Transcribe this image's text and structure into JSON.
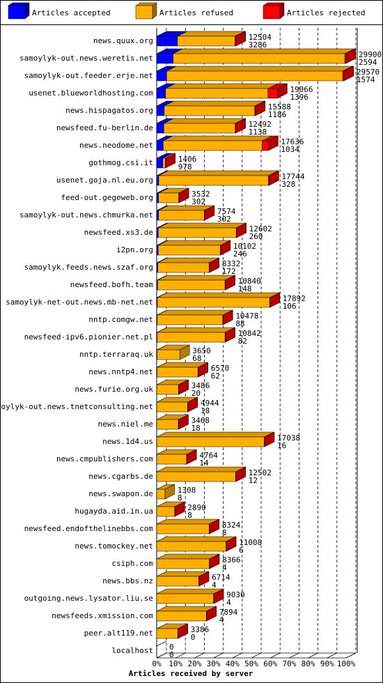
{
  "chart_data": {
    "type": "bar",
    "stacked": true,
    "orientation": "horizontal",
    "x_label": "Articles received by server",
    "categories": [
      "news.quux.org",
      "samoylyk-out.news.weretis.net",
      "samoylyk-out.feeder.erje.net",
      "usenet.blueworldhosting.com",
      "news.hispagatos.org",
      "newsfeed.fu-berlin.de",
      "news.neodome.net",
      "gothmog.csi.it",
      "usenet.goja.nl.eu.org",
      "feed-out.gegeweb.org",
      "samoylyk-out.news.chmurka.net",
      "newsfeed.xs3.de",
      "i2pn.org",
      "samoylyk.feeds.news.szaf.org",
      "newsfeed.bofh.team",
      "samoylyk-net-out.news.mb-net.net",
      "nntp.comgw.net",
      "newsfeed-ipv6.pionier.net.pl",
      "nntp.terraraq.uk",
      "news.nntp4.net",
      "news.furie.org.uk",
      "samoylyk-out.news.tnetconsulting.net",
      "news.niel.me",
      "news.1d4.us",
      "news.cmpublishers.com",
      "news.cgarbs.de",
      "news.swapon.de",
      "hugayda.aid.in.ua",
      "newsfeed.endofthelinebbs.com",
      "news.tomockey.net",
      "csiph.com",
      "news.bbs.nz",
      "outgoing.news.lysator.liu.se",
      "newsfeeds.xmission.com",
      "peer.alt119.net",
      "localhost"
    ],
    "totals": [
      12504,
      29900,
      29570,
      19066,
      15588,
      12492,
      17636,
      1406,
      17744,
      3532,
      7574,
      12602,
      10102,
      8332,
      10840,
      17892,
      10478,
      10842,
      3650,
      6570,
      3486,
      4944,
      3468,
      17038,
      4764,
      12502,
      1308,
      2890,
      8324,
      11008,
      8366,
      6714,
      9030,
      7894,
      3386,
      0
    ],
    "series": [
      {
        "name": "Articles accepted",
        "color": "#0000ff",
        "values": [
          3286,
          2594,
          1574,
          1396,
          1186,
          1138,
          1034,
          978,
          328,
          302,
          302,
          260,
          246,
          172,
          148,
          106,
          88,
          82,
          68,
          62,
          20,
          18,
          18,
          16,
          14,
          12,
          8,
          8,
          8,
          6,
          4,
          4,
          4,
          4,
          0,
          0
        ]
      },
      {
        "name": "Articles refused",
        "color": "#ffb000",
        "values": [
          9068,
          27106,
          27796,
          16170,
          14302,
          11254,
          15602,
          378,
          17316,
          3180,
          7222,
          12292,
          9806,
          8110,
          10642,
          17736,
          10340,
          10710,
          3582,
          6458,
          3416,
          4876,
          3400,
          16972,
          4700,
          12440,
          1300,
          2832,
          8266,
          10952,
          8312,
          6660,
          8976,
          7840,
          3336,
          0
        ]
      },
      {
        "name": "Articles rejected",
        "color": "#ff0000",
        "values": [
          150,
          200,
          200,
          1500,
          100,
          100,
          1000,
          50,
          100,
          50,
          50,
          50,
          50,
          50,
          50,
          50,
          50,
          50,
          0,
          50,
          50,
          50,
          50,
          50,
          50,
          50,
          0,
          50,
          50,
          50,
          50,
          50,
          50,
          50,
          50,
          0
        ]
      }
    ],
    "xlim": [
      0,
      29900
    ],
    "xticks": [
      {
        "value": 0,
        "label": "0%"
      },
      {
        "value": 2990,
        "label": "10%"
      },
      {
        "value": 5980,
        "label": "20%"
      },
      {
        "value": 8970,
        "label": "30%"
      },
      {
        "value": 11960,
        "label": "40%"
      },
      {
        "value": 14950,
        "label": "50%"
      },
      {
        "value": 17940,
        "label": "60%"
      },
      {
        "value": 20930,
        "label": "70%"
      },
      {
        "value": 23920,
        "label": "80%"
      },
      {
        "value": 26910,
        "label": "90%"
      },
      {
        "value": 29900,
        "label": "100%"
      }
    ],
    "grid": true
  }
}
